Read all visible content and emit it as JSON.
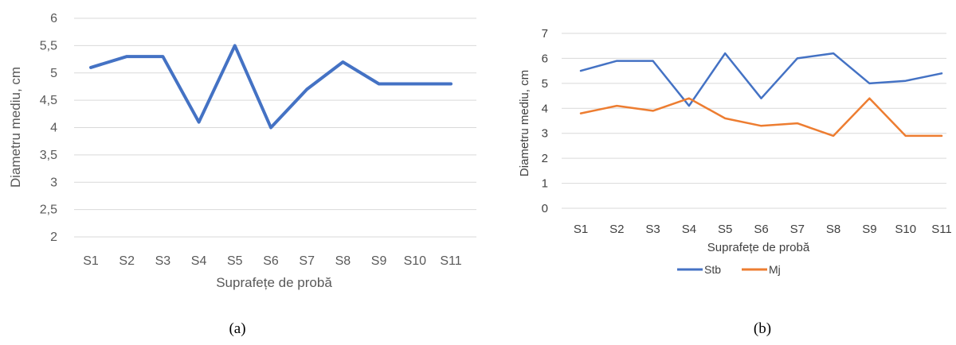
{
  "chart_data": [
    {
      "type": "line",
      "caption": "(a)",
      "title": "",
      "xlabel": "Suprafețe de probă",
      "ylabel": "Diametru mediu, cm",
      "categories": [
        "S1",
        "S2",
        "S3",
        "S4",
        "S5",
        "S6",
        "S7",
        "S8",
        "S9",
        "S10",
        "S11"
      ],
      "y_ticks": [
        "2",
        "2,5",
        "3",
        "3,5",
        "4",
        "4,5",
        "5",
        "5,5",
        "6"
      ],
      "ylim": [
        2,
        6
      ],
      "grid": true,
      "legend": "none",
      "series": [
        {
          "name": "",
          "color": "#4472C4",
          "values": [
            5.1,
            5.3,
            5.3,
            4.1,
            5.5,
            4.0,
            4.7,
            5.2,
            4.8,
            4.8,
            4.8
          ]
        }
      ]
    },
    {
      "type": "line",
      "caption": "(b)",
      "title": "",
      "xlabel": "Suprafețe de probă",
      "ylabel": "Diametru mediu, cm",
      "categories": [
        "S1",
        "S2",
        "S3",
        "S4",
        "S5",
        "S6",
        "S7",
        "S8",
        "S9",
        "S10",
        "S11"
      ],
      "y_ticks": [
        "0",
        "1",
        "2",
        "3",
        "4",
        "5",
        "6",
        "7"
      ],
      "ylim": [
        0,
        7
      ],
      "grid": true,
      "legend": "bottom",
      "series": [
        {
          "name": "Stb",
          "color": "#4472C4",
          "values": [
            5.5,
            5.9,
            5.9,
            4.1,
            6.2,
            4.4,
            6.0,
            6.2,
            5.0,
            5.1,
            5.4
          ]
        },
        {
          "name": "Mj",
          "color": "#ED7D31",
          "values": [
            3.8,
            4.1,
            3.9,
            4.4,
            3.6,
            3.3,
            3.4,
            2.9,
            4.4,
            2.9,
            2.9
          ]
        }
      ]
    }
  ]
}
